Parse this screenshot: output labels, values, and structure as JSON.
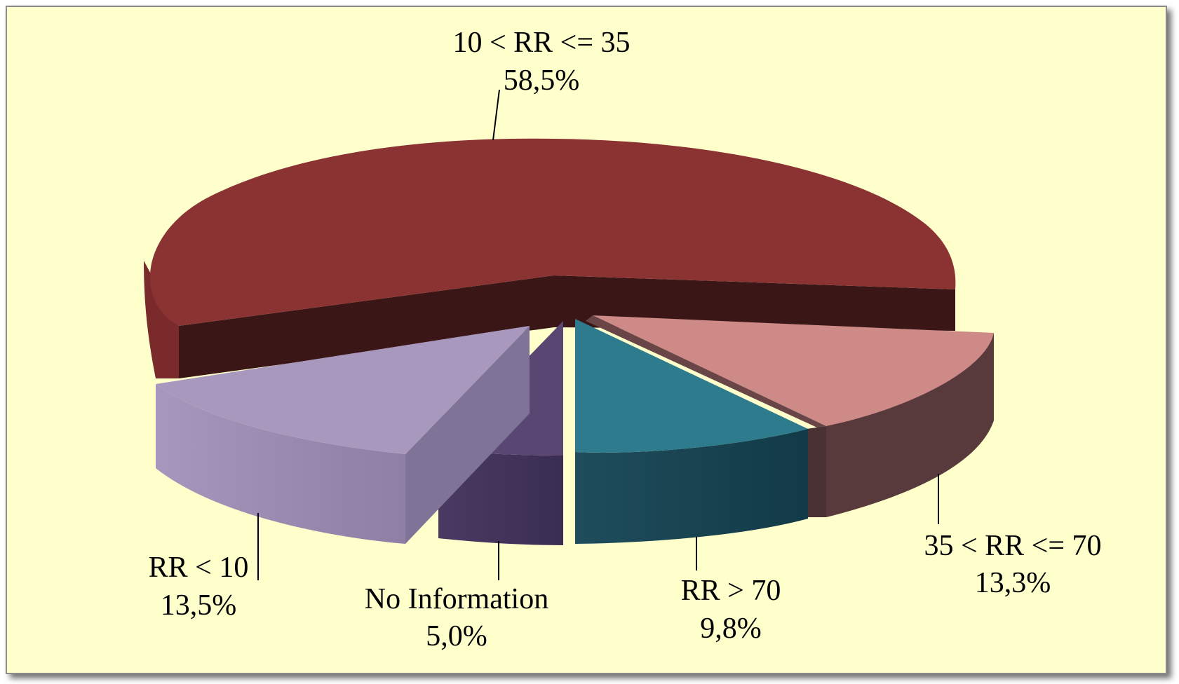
{
  "chart_data": {
    "type": "pie",
    "title": "",
    "categories": [
      "10 < RR <= 35",
      "35 < RR <= 70",
      "RR > 70",
      "No Information",
      "RR < 10"
    ],
    "values": [
      58.5,
      13.3,
      9.8,
      5.0,
      13.5
    ],
    "value_labels": [
      "58,5%",
      "13,3%",
      "9,8%",
      "5,0%",
      "13,5%"
    ],
    "colors": [
      "#8b3232",
      "#cd8a87",
      "#2e7b8e",
      "#5a4673",
      "#a998be"
    ],
    "three_d": true,
    "exploded": [
      "35 < RR <= 70",
      "RR > 70",
      "No Information",
      "RR < 10"
    ],
    "legend": "none",
    "background_color": "#ffffcc"
  }
}
